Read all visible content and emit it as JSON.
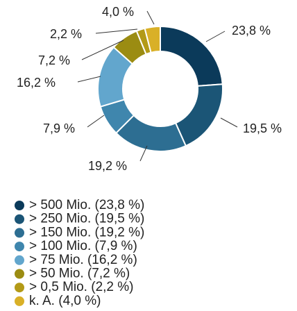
{
  "chart_data": {
    "type": "donut",
    "categories": [
      "> 500 Mio. (23,8 %)",
      "> 250 Mio. (19,5 %)",
      "> 150 Mio. (19,2 %)",
      "> 100 Mio. (7,9 %)",
      "> 75 Mio. (16,2 %)",
      "> 50 Mio. (7,2 %)",
      "> 0,5 Mio. (2,2 %)",
      "k. A. (4,0 %)"
    ],
    "values": [
      23.8,
      19.5,
      19.2,
      7.9,
      16.2,
      7.2,
      2.2,
      4.0
    ],
    "value_labels": [
      "23,8 %",
      "19,5 %",
      "19,2 %",
      "7,9 %",
      "16,2 %",
      "7,2 %",
      "2,2 %",
      "4,0 %"
    ],
    "colors": [
      "#0b3a5a",
      "#1b5576",
      "#2d6e92",
      "#3f86ad",
      "#62a6cd",
      "#9b8c12",
      "#b39a17",
      "#d9b027"
    ]
  }
}
